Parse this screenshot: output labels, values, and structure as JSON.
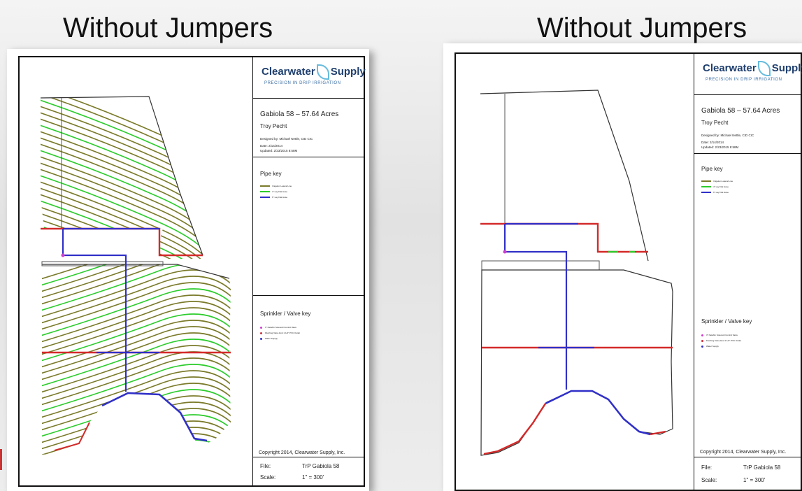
{
  "headings": {
    "left": "Without Jumpers",
    "right": "Without Jumpers"
  },
  "titleblock": {
    "logo_main": "Clearwater",
    "logo_second": "Supply",
    "logo_tagline": "PRECISION IN DRIP IRRIGATION",
    "project_title": "Gabiola 58 – 57.64 Acres",
    "client": "Troy Pecht",
    "designed_by": "Designed by:   Michael Nettle, CID CIC",
    "date": "Date:        2/14/2014",
    "updated": "Updated:    2/23/2015 8:58M",
    "pipe_key_title": "Pipe key",
    "pipe_keys": [
      {
        "label": "Irrigation Lateral Line",
        "color": "#7a7a2a"
      },
      {
        "label": "4\" Lay Flat Hose",
        "color": "#2ccc2c"
      },
      {
        "label": "6\" Lay Flat Hose",
        "color": "#3030c8"
      }
    ],
    "sprinkler_key_title": "Sprinkler / Valve key",
    "sprinkler_keys": [
      {
        "label": "3\" Netafim Solenoid Control Valve",
        "color": "#d03cd0"
      },
      {
        "label": "Flushing Valve End 1 1/2\" PVC Outlet",
        "color": "#d0303c"
      },
      {
        "label": "Water Supply",
        "color": "#3030c8"
      }
    ],
    "copyright": "Copyright 2014, Clearwater Supply, Inc.",
    "file_label": "File:",
    "file_value": "TrP Gabiola 58",
    "scale_label": "Scale:",
    "scale_value": "1\" = 300'"
  },
  "colors": {
    "lateral": "#7a7a2a",
    "hose4": "#2ccc2c",
    "hose6": "#3030c8",
    "header_red": "#d42a2a",
    "valve": "#d03cd0"
  }
}
